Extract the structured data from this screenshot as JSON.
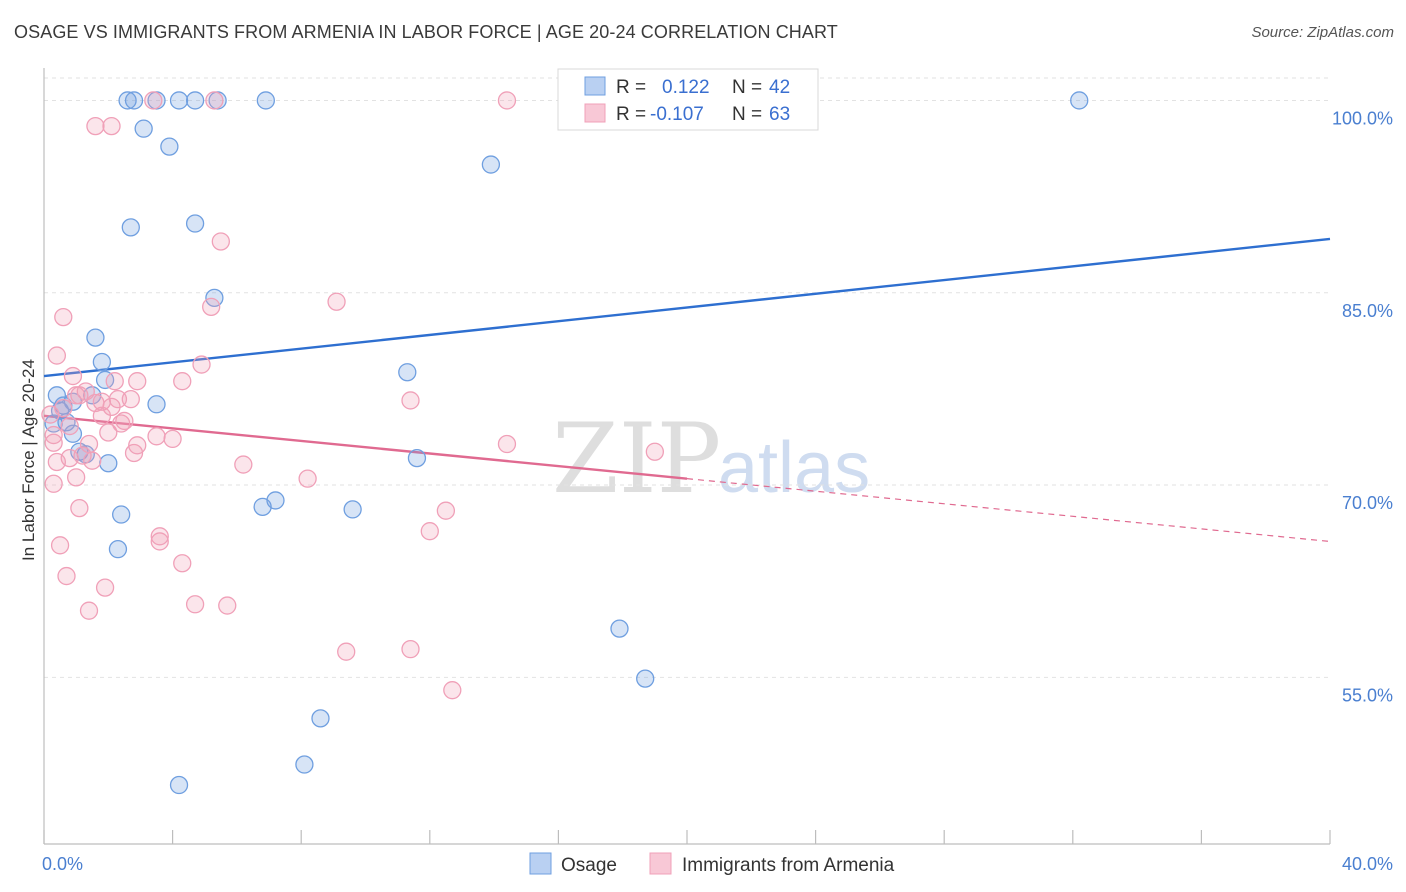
{
  "title": "OSAGE VS IMMIGRANTS FROM ARMENIA IN LABOR FORCE | AGE 20-24 CORRELATION CHART",
  "source": "Source: ZipAtlas.com",
  "watermark": {
    "zip": "ZIP",
    "atlas": "atlas"
  },
  "legend": {
    "r_label": "R =",
    "n_label": "N =",
    "rows": [
      {
        "r": "0.122",
        "n": "42"
      },
      {
        "r": "-0.107",
        "n": "63"
      }
    ]
  },
  "chart_data": {
    "type": "scatter",
    "title": "OSAGE VS IMMIGRANTS FROM ARMENIA IN LABOR FORCE | AGE 20-24 CORRELATION CHART",
    "xlabel": "",
    "ylabel": "In Labor Force | Age 20-24",
    "xlim": [
      0,
      40
    ],
    "ylim": [
      42,
      103
    ],
    "x_tick_labels": [
      {
        "value": 0,
        "label": "0.0%"
      },
      {
        "value": 40,
        "label": "40.0%"
      }
    ],
    "y_tick_labels": [
      {
        "value": 100,
        "label": "100.0%"
      },
      {
        "value": 85,
        "label": "85.0%"
      },
      {
        "value": 70,
        "label": "70.0%"
      },
      {
        "value": 55,
        "label": "55.0%"
      }
    ],
    "grid": true,
    "legend_position": "top-center",
    "colors": {
      "osage": "#6f9fe0",
      "armenia": "#f0a0b8",
      "osage_line": "#2e6fd0",
      "armenia_line": "#e06a90"
    },
    "series": [
      {
        "name": "Osage",
        "color": "#6f9fe0",
        "trend": {
          "x": [
            0,
            40
          ],
          "y": [
            78.5,
            89.2
          ]
        },
        "points": [
          [
            0.4,
            77.0
          ],
          [
            0.6,
            76.2
          ],
          [
            0.9,
            76.5
          ],
          [
            0.3,
            74.8
          ],
          [
            0.7,
            74.9
          ],
          [
            1.1,
            72.6
          ],
          [
            1.3,
            72.4
          ],
          [
            0.9,
            74.0
          ],
          [
            1.6,
            81.5
          ],
          [
            1.8,
            79.6
          ],
          [
            1.9,
            78.2
          ],
          [
            2.0,
            71.7
          ],
          [
            2.4,
            67.7
          ],
          [
            2.3,
            65.0
          ],
          [
            2.7,
            90.1
          ],
          [
            3.1,
            97.8
          ],
          [
            3.5,
            76.3
          ],
          [
            3.9,
            96.4
          ],
          [
            4.7,
            90.4
          ],
          [
            5.3,
            84.6
          ],
          [
            2.6,
            100.0
          ],
          [
            2.8,
            100.0
          ],
          [
            3.5,
            100.0
          ],
          [
            4.2,
            100.0
          ],
          [
            4.7,
            100.0
          ],
          [
            5.4,
            100.0
          ],
          [
            6.9,
            100.0
          ],
          [
            6.8,
            68.3
          ],
          [
            7.2,
            68.8
          ],
          [
            9.6,
            68.1
          ],
          [
            11.3,
            78.8
          ],
          [
            11.6,
            72.1
          ],
          [
            13.9,
            95.0
          ],
          [
            17.9,
            58.8
          ],
          [
            18.7,
            54.9
          ],
          [
            8.6,
            51.8
          ],
          [
            8.1,
            48.2
          ],
          [
            4.2,
            46.6
          ],
          [
            23.8,
            100.0
          ],
          [
            32.2,
            100.0
          ],
          [
            1.5,
            77.0
          ],
          [
            0.5,
            75.8
          ]
        ]
      },
      {
        "name": "Immigrants from Armenia",
        "color": "#f0a0b8",
        "trend": {
          "x": [
            0,
            20
          ],
          "y": [
            75.4,
            70.5
          ]
        },
        "trend_dashed": {
          "x": [
            20,
            40
          ],
          "y": [
            70.5,
            65.6
          ]
        },
        "points": [
          [
            0.2,
            75.5
          ],
          [
            0.3,
            73.9
          ],
          [
            0.3,
            73.3
          ],
          [
            0.4,
            71.8
          ],
          [
            0.4,
            80.1
          ],
          [
            0.6,
            83.1
          ],
          [
            0.5,
            65.3
          ],
          [
            0.7,
            62.9
          ],
          [
            0.8,
            72.1
          ],
          [
            0.9,
            78.5
          ],
          [
            1.0,
            77.0
          ],
          [
            1.0,
            70.6
          ],
          [
            1.1,
            68.2
          ],
          [
            1.2,
            72.3
          ],
          [
            1.3,
            77.3
          ],
          [
            1.4,
            60.2
          ],
          [
            1.4,
            73.2
          ],
          [
            1.5,
            71.9
          ],
          [
            1.6,
            76.4
          ],
          [
            1.8,
            75.4
          ],
          [
            1.9,
            62.0
          ],
          [
            2.0,
            74.1
          ],
          [
            2.1,
            76.1
          ],
          [
            2.2,
            78.1
          ],
          [
            2.3,
            76.7
          ],
          [
            2.4,
            74.8
          ],
          [
            2.7,
            76.7
          ],
          [
            2.8,
            72.5
          ],
          [
            2.9,
            78.1
          ],
          [
            2.9,
            73.1
          ],
          [
            3.5,
            73.8
          ],
          [
            3.6,
            65.6
          ],
          [
            3.6,
            66.0
          ],
          [
            4.0,
            73.6
          ],
          [
            4.3,
            78.1
          ],
          [
            4.3,
            63.9
          ],
          [
            4.7,
            60.7
          ],
          [
            4.9,
            79.4
          ],
          [
            5.2,
            83.9
          ],
          [
            5.5,
            89.0
          ],
          [
            5.7,
            60.6
          ],
          [
            6.2,
            71.6
          ],
          [
            8.2,
            70.5
          ],
          [
            9.1,
            84.3
          ],
          [
            9.4,
            57.0
          ],
          [
            11.4,
            76.6
          ],
          [
            11.4,
            57.2
          ],
          [
            12.0,
            66.4
          ],
          [
            12.5,
            68.0
          ],
          [
            12.7,
            54.0
          ],
          [
            14.4,
            100.0
          ],
          [
            14.4,
            73.2
          ],
          [
            19.0,
            72.6
          ],
          [
            1.6,
            98.0
          ],
          [
            2.1,
            98.0
          ],
          [
            3.4,
            100.0
          ],
          [
            5.3,
            100.0
          ],
          [
            0.8,
            74.6
          ],
          [
            1.1,
            77.0
          ],
          [
            2.5,
            75.0
          ],
          [
            0.3,
            70.1
          ],
          [
            1.8,
            76.5
          ],
          [
            0.6,
            76.0
          ]
        ]
      }
    ]
  },
  "bottom_legend": [
    "Osage",
    "Immigrants from Armenia"
  ]
}
